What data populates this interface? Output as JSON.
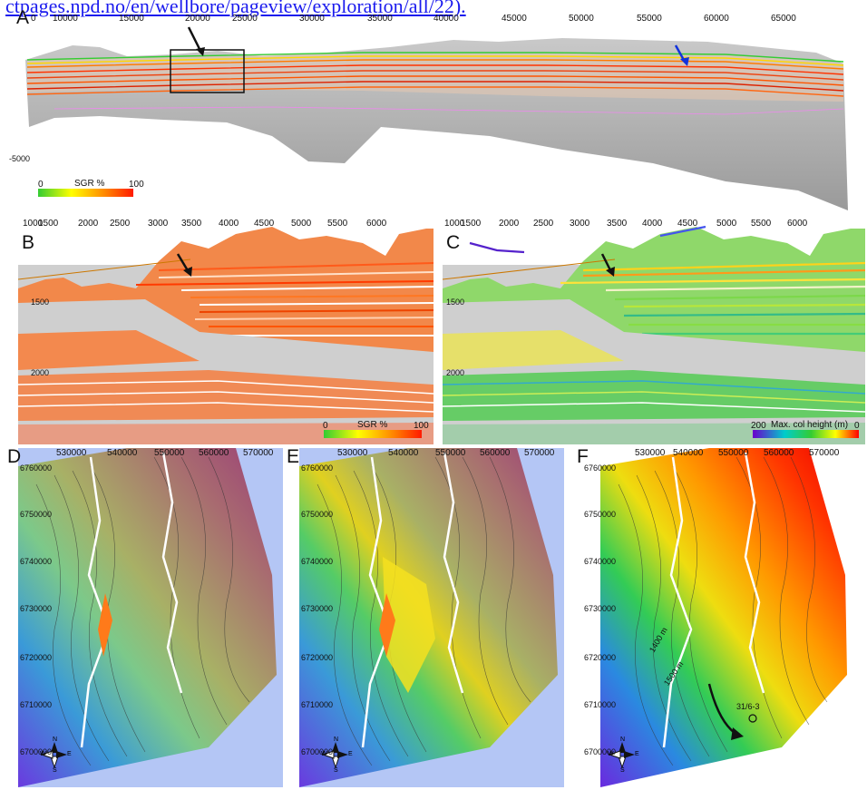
{
  "caption_fragment": "ctpages.npd.no/en/wellbore/pageview/exploration/all/22).",
  "panels": {
    "A": {
      "label": "A",
      "top_ticks": [
        "0",
        "10000",
        "15000",
        "20000",
        "25000",
        "30000",
        "35000",
        "40000",
        "45000",
        "50000",
        "55000",
        "60000",
        "65000"
      ],
      "y_tick": "-5000",
      "colorbar": {
        "min": "0",
        "title": "SGR %",
        "max": "100"
      }
    },
    "B": {
      "label": "B",
      "top_ticks": [
        "1000",
        "1500",
        "2000",
        "2500",
        "3000",
        "3500",
        "4000",
        "4500",
        "5000",
        "5500",
        "6000"
      ],
      "y_ticks": [
        "1500",
        "2000"
      ],
      "colorbar": {
        "min": "0",
        "title": "SGR %",
        "max": "100"
      }
    },
    "C": {
      "label": "C",
      "top_ticks": [
        "1000",
        "1500",
        "2000",
        "2500",
        "3000",
        "3500",
        "4000",
        "4500",
        "5000",
        "5500",
        "6000"
      ],
      "y_ticks": [
        "1500",
        "2000"
      ],
      "colorbar": {
        "min": "200",
        "title": "Max. col height (m)",
        "max": "0"
      }
    },
    "D": {
      "label": "D",
      "top_ticks": [
        "530000",
        "540000",
        "550000",
        "560000",
        "570000"
      ],
      "y_ticks": [
        "6760000",
        "6750000",
        "6740000",
        "6730000",
        "6720000",
        "6710000",
        "6700000"
      ]
    },
    "E": {
      "label": "E",
      "top_ticks": [
        "530000",
        "540000",
        "550000",
        "560000",
        "570000"
      ],
      "y_ticks": [
        "6760000",
        "6750000",
        "6740000",
        "6730000",
        "6720000",
        "6710000",
        "6700000"
      ]
    },
    "F": {
      "label": "F",
      "top_ticks": [
        "530000",
        "540000",
        "550000",
        "560000",
        "570000"
      ],
      "y_ticks": [
        "6760000",
        "6750000",
        "6740000",
        "6730000",
        "6720000",
        "6710000",
        "6700000"
      ],
      "contour_labels": [
        "1400 m",
        "1500 m"
      ],
      "well_label": "31/6-3"
    }
  },
  "compass": {
    "n": "N",
    "s": "S",
    "e": "E",
    "w": "W"
  },
  "colors": {
    "sgr_ramp": [
      "#33cc33",
      "#ffff00",
      "#ff8800",
      "#ff2200"
    ],
    "colheight_ramp": [
      "#6a00cc",
      "#00cccc",
      "#33cc33",
      "#ffff00",
      "#ff0000"
    ],
    "caption_link": "#1a1aee",
    "arrow_black": "#111111",
    "arrow_blue": "#1133dd"
  }
}
